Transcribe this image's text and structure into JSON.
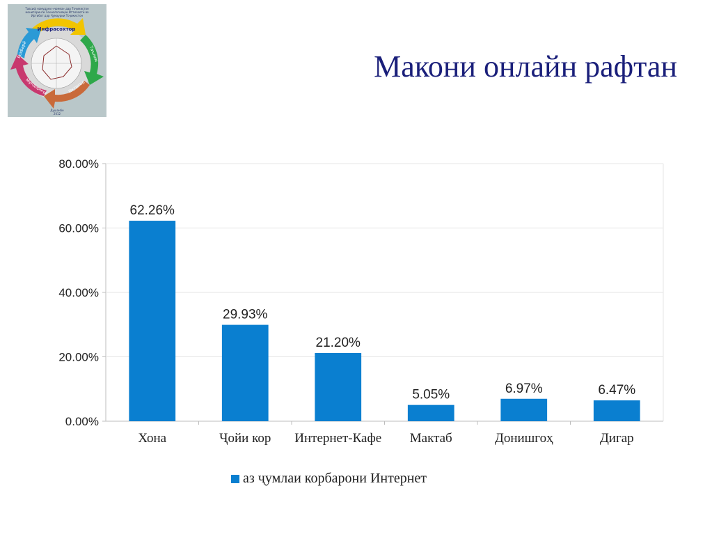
{
  "slide": {
    "title": "Макони онлайн рафтан"
  },
  "logo": {
    "caption_lines": [
      "Тавсиф намудани «ҷомеа» дар Тоҷикистон",
      "мониторинги Технологияҳои Иттилоотӣ ва",
      "Иртибот дар Ҷумҳурии Тоҷикистон"
    ],
    "segments": [
      "Инфрасохтор",
      "Таълим",
      "Иқтисод",
      "Мундариҷа",
      "Роҳбарӣ"
    ],
    "footer_lines": [
      "Душанбе",
      "2012"
    ]
  },
  "colors": {
    "bar": "#0a7fd0",
    "grid": "#e4e4e4",
    "title": "#1a1f7a"
  },
  "chart_data": {
    "type": "bar",
    "categories": [
      "Хона",
      "Ҷойи кор",
      "Интернет-Кафе",
      "Мактаб",
      "Донишгоҳ",
      "Дигар"
    ],
    "series": [
      {
        "name": "аз ҷумлаи корбарони Интернет",
        "values": [
          62.26,
          29.93,
          21.2,
          5.05,
          6.97,
          6.47
        ],
        "labels": [
          "62.26%",
          "29.93%",
          "21.20%",
          "5.05%",
          "6.97%",
          "6.47%"
        ]
      }
    ],
    "ylim": [
      0,
      80
    ],
    "yticks": [
      0,
      20,
      40,
      60,
      80
    ],
    "ytick_labels": [
      "0.00%",
      "20.00%",
      "40.00%",
      "60.00%",
      "80.00%"
    ],
    "title": "",
    "xlabel": "",
    "ylabel": "",
    "grid": true,
    "legend_position": "bottom"
  }
}
